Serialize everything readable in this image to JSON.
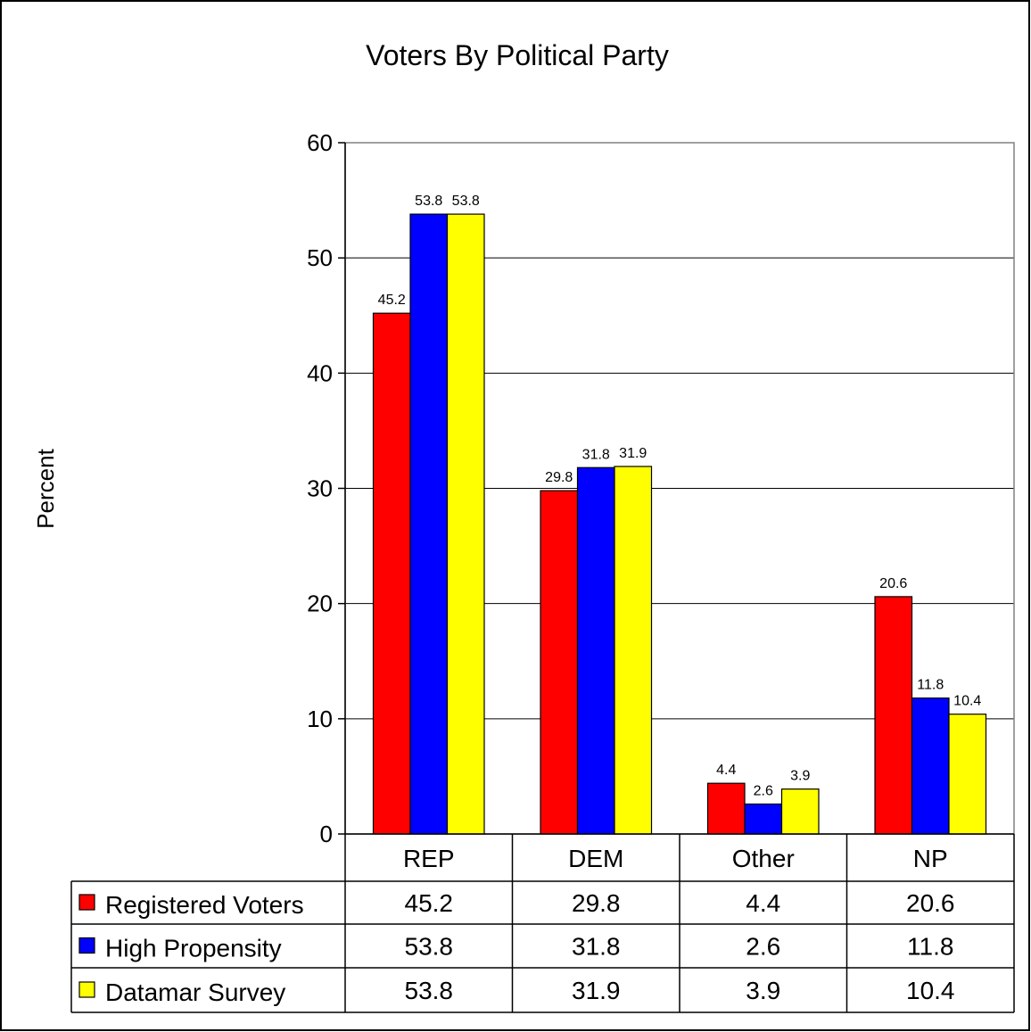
{
  "chart_data": {
    "type": "bar",
    "title": "Voters By Political Party",
    "xlabel": "",
    "ylabel": "Percent",
    "ylim": [
      0,
      60
    ],
    "yticks": [
      0,
      10,
      20,
      30,
      40,
      50,
      60
    ],
    "grid": true,
    "legend": "data table",
    "categories": [
      "REP",
      "DEM",
      "Other",
      "NP"
    ],
    "series": [
      {
        "name": "Registered Voters",
        "color": "#ff0000",
        "values": [
          45.2,
          29.8,
          4.4,
          20.6
        ],
        "labels": [
          "45.2",
          "29.8",
          "4.4",
          "20.6"
        ]
      },
      {
        "name": "High Propensity",
        "color": "#0000ff",
        "values": [
          53.8,
          31.8,
          2.6,
          11.8
        ],
        "labels": [
          "53.8",
          "31.8",
          "2.6",
          "11.8"
        ]
      },
      {
        "name": "Datamar Survey",
        "color": "#ffff00",
        "values": [
          53.8,
          31.9,
          3.9,
          10.4
        ],
        "labels": [
          "53.8",
          "31.9",
          "3.9",
          "10.4"
        ]
      }
    ]
  }
}
